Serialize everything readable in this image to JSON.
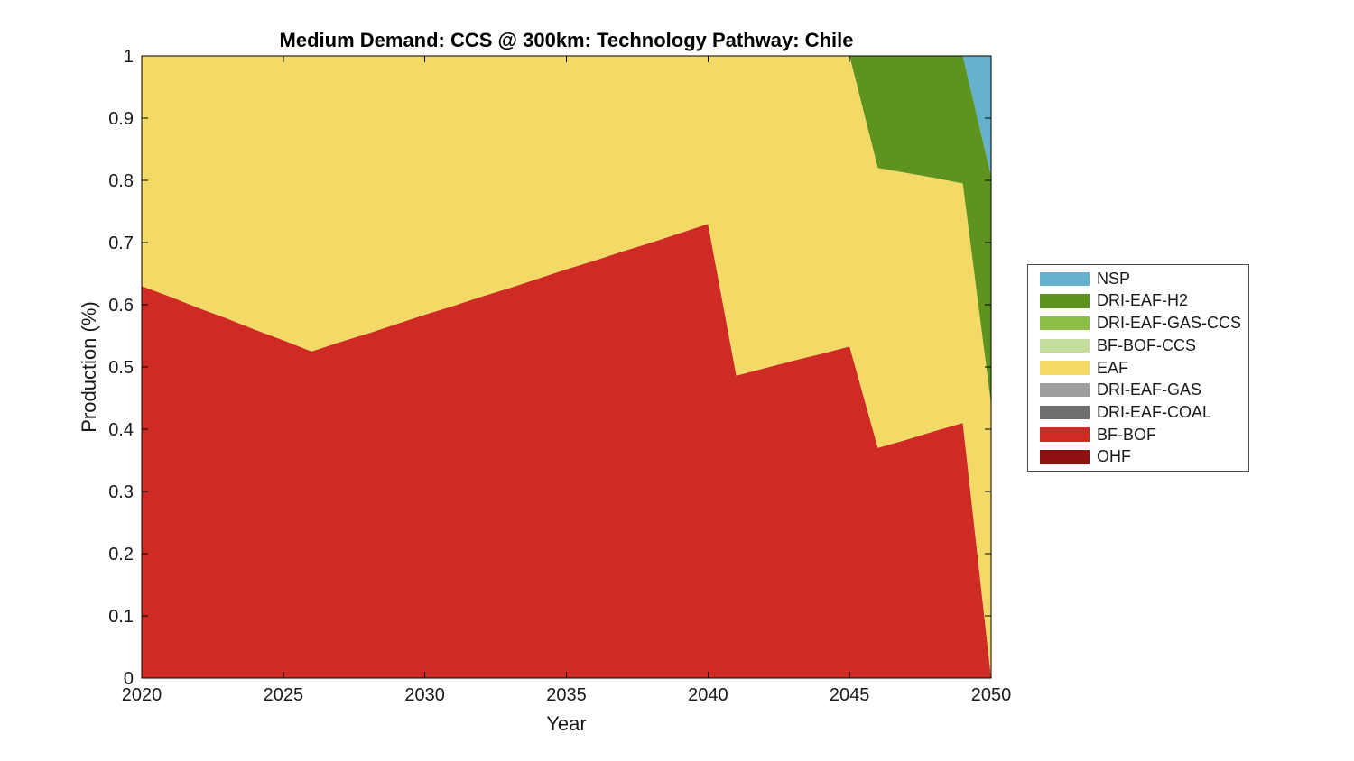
{
  "title": "Medium Demand: CCS @ 300km: Technology Pathway: Chile",
  "chart_data": {
    "type": "area",
    "stacked": true,
    "title": "Medium Demand: CCS @ 300km: Technology Pathway: Chile",
    "xlabel": "Year",
    "ylabel": "Production (%)",
    "xlim": [
      2020,
      2050
    ],
    "ylim": [
      0,
      1
    ],
    "grid": false,
    "legend_position": "right-outside",
    "x_ticks": [
      2020,
      2025,
      2030,
      2035,
      2040,
      2045,
      2050
    ],
    "y_ticks": [
      0,
      0.1,
      0.2,
      0.3,
      0.4,
      0.5,
      0.6,
      0.7,
      0.8,
      0.9,
      1
    ],
    "y_tick_labels": [
      "0",
      "0.1",
      "0.2",
      "0.3",
      "0.4",
      "0.5",
      "0.6",
      "0.7",
      "0.8",
      "0.9",
      "1"
    ],
    "x": [
      2020,
      2021,
      2022,
      2023,
      2024,
      2025,
      2026,
      2027,
      2028,
      2029,
      2030,
      2031,
      2032,
      2033,
      2034,
      2035,
      2036,
      2037,
      2038,
      2039,
      2040,
      2041,
      2042,
      2043,
      2044,
      2045,
      2046,
      2047,
      2048,
      2049,
      2050
    ],
    "series": [
      {
        "name": "OHF",
        "color": "#8C1010",
        "values": [
          0,
          0,
          0,
          0,
          0,
          0,
          0,
          0,
          0,
          0,
          0,
          0,
          0,
          0,
          0,
          0,
          0,
          0,
          0,
          0,
          0,
          0,
          0,
          0,
          0,
          0,
          0,
          0,
          0,
          0,
          0
        ]
      },
      {
        "name": "BF-BOF",
        "color": "#CE2B25",
        "values": [
          0.63,
          0.613,
          0.595,
          0.578,
          0.56,
          0.543,
          0.525,
          0.54,
          0.554,
          0.569,
          0.584,
          0.598,
          0.613,
          0.627,
          0.642,
          0.657,
          0.671,
          0.686,
          0.7,
          0.715,
          0.73,
          0.486,
          0.498,
          0.51,
          0.521,
          0.533,
          0.37,
          0.383,
          0.397,
          0.41,
          0.0
        ]
      },
      {
        "name": "DRI-EAF-COAL",
        "color": "#6E6E6E",
        "values": [
          0,
          0,
          0,
          0,
          0,
          0,
          0,
          0,
          0,
          0,
          0,
          0,
          0,
          0,
          0,
          0,
          0,
          0,
          0,
          0,
          0,
          0,
          0,
          0,
          0,
          0,
          0,
          0,
          0,
          0,
          0
        ]
      },
      {
        "name": "DRI-EAF-GAS",
        "color": "#9E9E9E",
        "values": [
          0,
          0,
          0,
          0,
          0,
          0,
          0,
          0,
          0,
          0,
          0,
          0,
          0,
          0,
          0,
          0,
          0,
          0,
          0,
          0,
          0,
          0,
          0,
          0,
          0,
          0,
          0,
          0,
          0,
          0,
          0
        ]
      },
      {
        "name": "EAF",
        "color": "#F3DA67",
        "values": [
          0.37,
          0.387,
          0.405,
          0.422,
          0.44,
          0.457,
          0.475,
          0.46,
          0.446,
          0.431,
          0.416,
          0.402,
          0.387,
          0.373,
          0.358,
          0.343,
          0.329,
          0.314,
          0.3,
          0.285,
          0.27,
          0.514,
          0.502,
          0.49,
          0.479,
          0.467,
          0.45,
          0.429,
          0.407,
          0.385,
          0.44
        ]
      },
      {
        "name": "BF-BOF-CCS",
        "color": "#C5DE9E",
        "values": [
          0,
          0,
          0,
          0,
          0,
          0,
          0,
          0,
          0,
          0,
          0,
          0,
          0,
          0,
          0,
          0,
          0,
          0,
          0,
          0,
          0,
          0,
          0,
          0,
          0,
          0,
          0,
          0,
          0,
          0,
          0
        ]
      },
      {
        "name": "DRI-EAF-GAS-CCS",
        "color": "#8CBE48",
        "values": [
          0,
          0,
          0,
          0,
          0,
          0,
          0,
          0,
          0,
          0,
          0,
          0,
          0,
          0,
          0,
          0,
          0,
          0,
          0,
          0,
          0,
          0,
          0,
          0,
          0,
          0,
          0,
          0,
          0,
          0,
          0
        ]
      },
      {
        "name": "DRI-EAF-H2",
        "color": "#5E9320",
        "values": [
          0,
          0,
          0,
          0,
          0,
          0,
          0,
          0,
          0,
          0,
          0,
          0,
          0,
          0,
          0,
          0,
          0,
          0,
          0,
          0,
          0,
          0,
          0,
          0,
          0,
          0,
          0.18,
          0.188,
          0.196,
          0.205,
          0.367
        ]
      },
      {
        "name": "NSP",
        "color": "#66B2CE",
        "values": [
          0,
          0,
          0,
          0,
          0,
          0,
          0,
          0,
          0,
          0,
          0,
          0,
          0,
          0,
          0,
          0,
          0,
          0,
          0,
          0,
          0,
          0,
          0,
          0,
          0,
          0,
          0,
          0,
          0,
          0,
          0.193
        ]
      }
    ],
    "legend_entries_top_to_bottom": [
      "NSP",
      "DRI-EAF-H2",
      "DRI-EAF-GAS-CCS",
      "BF-BOF-CCS",
      "EAF",
      "DRI-EAF-GAS",
      "DRI-EAF-COAL",
      "BF-BOF",
      "OHF"
    ]
  }
}
